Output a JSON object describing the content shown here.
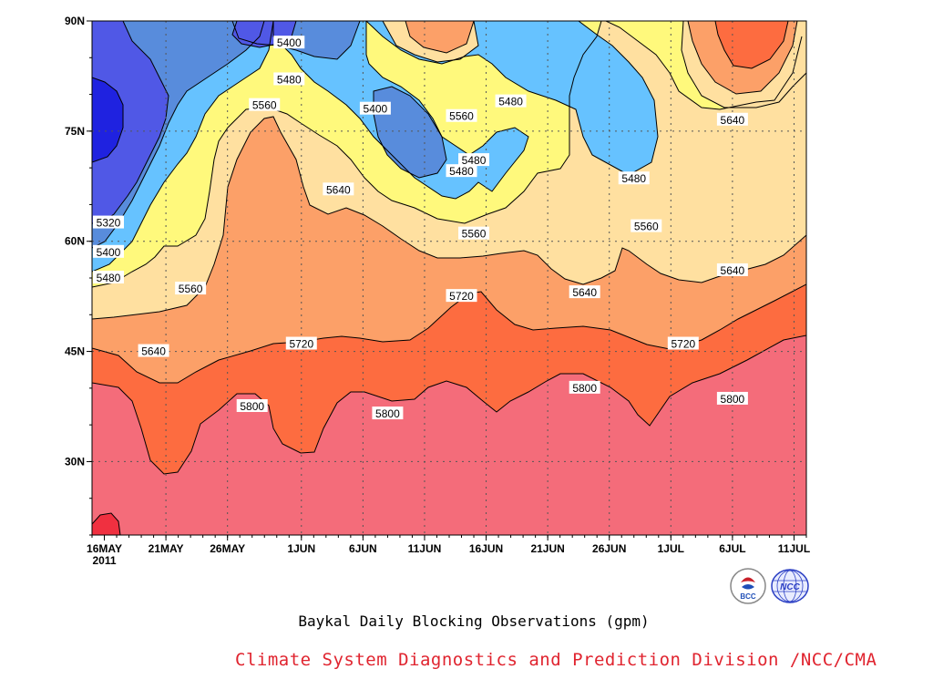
{
  "chart_data": {
    "type": "contour",
    "title": "Baykal Daily Blocking Observations (gpm)",
    "x_ticks": [
      "16MAY",
      "21MAY",
      "26MAY",
      "1JUN",
      "6JUN",
      "11JUN",
      "16JUN",
      "21JUN",
      "26JUN",
      "1JUL",
      "6JUL",
      "11JUL"
    ],
    "x_year_label": "2011",
    "y_ticks": [
      "90N",
      "75N",
      "60N",
      "45N",
      "30N"
    ],
    "x_range": [
      "2011-05-15",
      "2011-07-12"
    ],
    "y_range": [
      20,
      90
    ],
    "grid": "dotted",
    "contour_levels": [
      5320,
      5400,
      5480,
      5560,
      5640,
      5720,
      5800
    ],
    "fill_colors": {
      "below_5320": "#1f22e0",
      "5320_5400": "#5058e6",
      "5400_5480": "#588cdc",
      "5480_5560": "#66c2ff",
      "5560_5640": "#fff97c",
      "5640_5720": "#ffe0a0",
      "5720_5800": "#fca068",
      "5800_5880": "#fd6c40",
      "above_5880": "#f46c7a",
      "max": "#f03040"
    },
    "contour_labels": [
      {
        "text": "5400",
        "day": "2011-05-31",
        "lat": 87
      },
      {
        "text": "5480",
        "day": "2011-05-31",
        "lat": 82
      },
      {
        "text": "5560",
        "day": "2011-05-29",
        "lat": 78.5
      },
      {
        "text": "5400",
        "day": "2011-06-07",
        "lat": 78
      },
      {
        "text": "5560",
        "day": "2011-06-14",
        "lat": 77
      },
      {
        "text": "5480",
        "day": "2011-06-18",
        "lat": 79
      },
      {
        "text": "5640",
        "day": "2011-07-06",
        "lat": 76.5
      },
      {
        "text": "5480",
        "day": "2011-06-15",
        "lat": 71
      },
      {
        "text": "5480",
        "day": "2011-06-14",
        "lat": 69.5
      },
      {
        "text": "5480",
        "day": "2011-06-28",
        "lat": 68.5
      },
      {
        "text": "5640",
        "day": "2011-06-04",
        "lat": 67
      },
      {
        "text": "5560",
        "day": "2011-06-29",
        "lat": 62
      },
      {
        "text": "5320",
        "day": "2011-05-15",
        "lat": 62.5
      },
      {
        "text": "5560",
        "day": "2011-06-15",
        "lat": 61
      },
      {
        "text": "5400",
        "day": "2011-05-15",
        "lat": 58.5
      },
      {
        "text": "5640",
        "day": "2011-07-06",
        "lat": 56
      },
      {
        "text": "5480",
        "day": "2011-05-15",
        "lat": 55
      },
      {
        "text": "5560",
        "day": "2011-05-23",
        "lat": 53.5
      },
      {
        "text": "5720",
        "day": "2011-06-14",
        "lat": 52.5
      },
      {
        "text": "5640",
        "day": "2011-06-24",
        "lat": 53
      },
      {
        "text": "5640",
        "day": "2011-05-20",
        "lat": 45
      },
      {
        "text": "5720",
        "day": "2011-06-01",
        "lat": 46
      },
      {
        "text": "5720",
        "day": "2011-07-02",
        "lat": 46
      },
      {
        "text": "5800",
        "day": "2011-06-24",
        "lat": 40
      },
      {
        "text": "5800",
        "day": "2011-07-06",
        "lat": 38.5
      },
      {
        "text": "5800",
        "day": "2011-05-28",
        "lat": 37.5
      },
      {
        "text": "5800",
        "day": "2011-06-08",
        "lat": 36.5
      }
    ]
  },
  "footer": {
    "credit": "Climate System Diagnostics and Prediction Division /NCC/CMA"
  },
  "logos": [
    {
      "name": "bcc-logo-icon",
      "text": "BCC"
    },
    {
      "name": "ncc-logo-icon",
      "text": "NCC"
    }
  ]
}
